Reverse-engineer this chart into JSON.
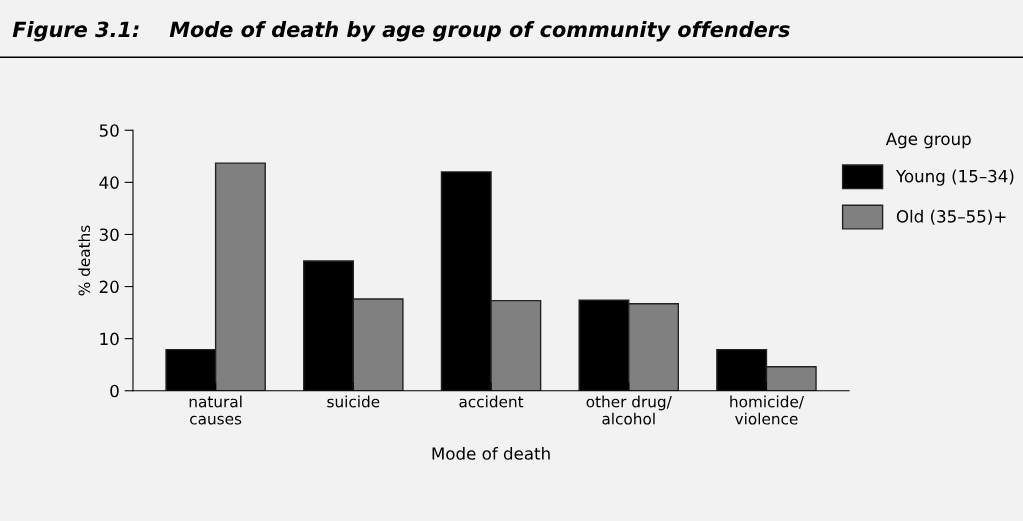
{
  "chart_data": {
    "type": "bar",
    "title": "Figure 3.1:    Mode of death by age group of community offenders",
    "categories": [
      "natural\ncauses",
      "suicide",
      "accident",
      "other drug/\nalcohol",
      "homicide/\nviolence"
    ],
    "series": [
      {
        "name": "Young (15–34)",
        "color": "#000000",
        "values": [
          7.9,
          24.9,
          42.0,
          17.4,
          7.9
        ]
      },
      {
        "name": "Old (35–55)+",
        "color": "#808080",
        "values": [
          43.7,
          17.6,
          17.3,
          16.7,
          4.6
        ]
      }
    ],
    "xlabel": "Mode of death",
    "ylabel": "% deaths",
    "legend_title": "Age group",
    "ylim": [
      0,
      50
    ],
    "yticks": [
      0,
      10,
      20,
      30,
      40,
      50
    ],
    "grid": false,
    "legend": "top right"
  }
}
